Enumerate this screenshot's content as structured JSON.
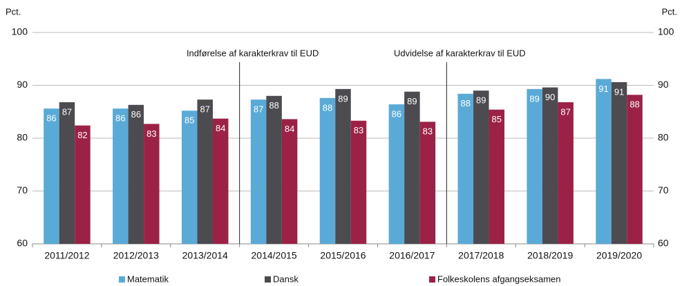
{
  "chart_data": {
    "type": "bar",
    "y_label": "Pct.",
    "y2_label": "Pct.",
    "categories": [
      "2011/2012",
      "2012/2013",
      "2013/2014",
      "2014/2015",
      "2015/2016",
      "2016/2017",
      "2017/2018",
      "2018/2019",
      "2019/2020"
    ],
    "series": [
      {
        "name": "Matematik",
        "color": "#5aaad8",
        "values": [
          85.6,
          85.6,
          85.2,
          87.3,
          87.6,
          86.4,
          88.4,
          89.3,
          91.2
        ],
        "value_labels": [
          "86",
          "86",
          "85",
          "87",
          "88",
          "86",
          "88",
          "89",
          "91"
        ]
      },
      {
        "name": "Dansk",
        "color": "#4b4b50",
        "values": [
          86.8,
          86.3,
          87.3,
          88.0,
          89.3,
          88.8,
          89.0,
          89.6,
          90.6
        ],
        "value_labels": [
          "87",
          "86",
          "87",
          "88",
          "89",
          "89",
          "89",
          "90",
          "91"
        ]
      },
      {
        "name": "Folkeskolens afgangseksamen",
        "color": "#9b2246",
        "values": [
          82.4,
          82.7,
          83.7,
          83.6,
          83.3,
          83.1,
          85.4,
          86.8,
          88.2
        ],
        "value_labels": [
          "82",
          "83",
          "84",
          "84",
          "83",
          "83",
          "85",
          "87",
          "88"
        ]
      }
    ],
    "annotations": [
      {
        "text": "Indførelse af karakterkrav til EUD",
        "category": "2014/2015"
      },
      {
        "text": "Udvidelse af karakterkrav til EUD",
        "category": "2017/2018"
      }
    ],
    "ylim": [
      60,
      100
    ],
    "yticks": [
      60,
      70,
      80,
      90,
      100
    ],
    "y2lim": [
      60,
      100
    ],
    "y2ticks": [
      60,
      70,
      80,
      90,
      100
    ],
    "grid": true,
    "legend": "bottom"
  }
}
